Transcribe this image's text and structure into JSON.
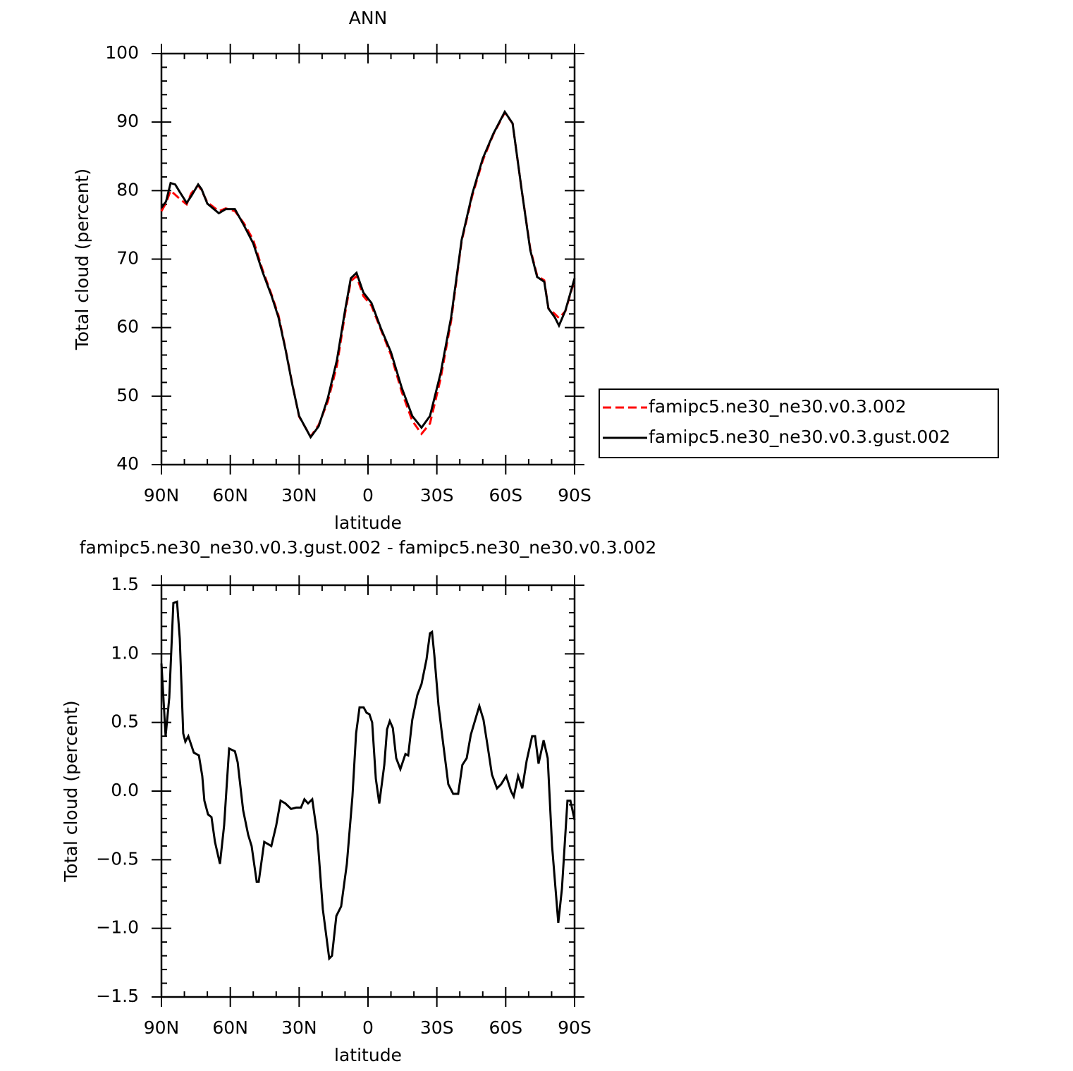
{
  "chart_data": [
    {
      "type": "line",
      "title": "ANN",
      "xlabel": "latitude",
      "ylabel": "Total cloud (percent)",
      "x": [
        90,
        88,
        86,
        84,
        82,
        79,
        77,
        74,
        72.5,
        70,
        65,
        62,
        58,
        54,
        50,
        46,
        42,
        39,
        36,
        33,
        30,
        25,
        21.5,
        17.5,
        13.5,
        10,
        7.5,
        5,
        2,
        -1.5,
        -5.5,
        -10,
        -14.7,
        -19.3,
        -23.3,
        -27,
        -31.6,
        -36.2,
        -40.8,
        -45.4,
        -50,
        -54.6,
        -59.6,
        -63,
        -67,
        -70.7,
        -73.7,
        -76.8,
        -78.6,
        -81.4,
        -83.2,
        -86,
        -90
      ],
      "series": [
        {
          "name": "famipc5.ne30_ne30.v0.3.002",
          "color": "#ff0000",
          "dash": true,
          "values": [
            77.0,
            78.2,
            80.0,
            79.4,
            78.8,
            78.0,
            79.6,
            80.8,
            80.0,
            78.3,
            77.0,
            77.4,
            77.0,
            75.2,
            72.8,
            68.5,
            64.8,
            61.8,
            57.0,
            51.8,
            47.0,
            44.1,
            45.8,
            49.2,
            54.5,
            62.0,
            66.8,
            67.5,
            64.6,
            63.2,
            59.8,
            56.0,
            50.6,
            46.4,
            44.5,
            46.0,
            52.5,
            61.0,
            72.6,
            79.2,
            84.4,
            88.2,
            91.4,
            89.8,
            80.0,
            71.5,
            67.6,
            66.9,
            62.8,
            62.0,
            61.4,
            62.4,
            67.0
          ]
        },
        {
          "name": "famipc5.ne30_ne30.v0.3.gust.002",
          "color": "#000000",
          "dash": false,
          "values": [
            77.5,
            78.4,
            81.1,
            80.9,
            79.8,
            78.2,
            79.2,
            80.9,
            80.2,
            78.1,
            76.7,
            77.3,
            77.3,
            74.9,
            72.3,
            68.2,
            64.6,
            61.5,
            56.9,
            51.7,
            47.1,
            44.0,
            45.6,
            49.7,
            55.3,
            62.5,
            67.2,
            68.0,
            65.1,
            63.6,
            60.0,
            56.4,
            51.2,
            47.1,
            45.4,
            47.1,
            53.3,
            61.5,
            72.8,
            79.5,
            84.7,
            88.3,
            91.5,
            89.8,
            80.0,
            71.3,
            67.4,
            66.7,
            62.8,
            61.5,
            60.3,
            62.5,
            67.2
          ]
        }
      ],
      "xlim": [
        90,
        -90
      ],
      "xticks": [
        {
          "value": 90,
          "label": "90N"
        },
        {
          "value": 60,
          "label": "60N"
        },
        {
          "value": 30,
          "label": "30N"
        },
        0,
        {
          "value": -30,
          "label": "30S"
        },
        {
          "value": -60,
          "label": "60S"
        },
        {
          "value": -90,
          "label": "90S"
        }
      ],
      "xminorticks": [
        80,
        70,
        50,
        40,
        20,
        10,
        -10,
        -20,
        -40,
        -50,
        -70,
        -80
      ],
      "ylim": [
        40,
        100
      ],
      "yticks": [
        40,
        50,
        60,
        70,
        80,
        90,
        100
      ],
      "yminorticks": [
        42,
        44,
        46,
        48,
        52,
        54,
        56,
        58,
        62,
        64,
        66,
        68,
        72,
        74,
        76,
        78,
        82,
        84,
        86,
        88,
        92,
        94,
        96,
        98
      ],
      "legend": "right"
    },
    {
      "type": "line",
      "title": "famipc5.ne30_ne30.v0.3.gust.002 - famipc5.ne30_ne30.v0.3.002",
      "xlabel": "latitude",
      "ylabel": "Total cloud (percent)",
      "x": [
        90,
        88.2,
        86.6,
        84.8,
        83.2,
        82,
        80.5,
        79.6,
        78.3,
        75.9,
        73.7,
        72.2,
        71.3,
        69.7,
        68.2,
        66.7,
        64.5,
        62.7,
        60.5,
        58,
        56.8,
        54.4,
        52.2,
        50.7,
        48.5,
        47.6,
        45.2,
        42.1,
        40,
        38.1,
        36,
        33.5,
        31.3,
        29.2,
        27.7,
        26.1,
        24.3,
        22.1,
        19.7,
        16.9,
        15.7,
        13.8,
        11.7,
        9.2,
        6.8,
        5.2,
        3.7,
        1.9,
        0.6,
        -0.6,
        -1.8,
        -3.4,
        -4.9,
        -7.1,
        -8.3,
        -9.5,
        -10.8,
        -12.3,
        -14.1,
        -16.3,
        -17.5,
        -19.3,
        -21.5,
        -23.3,
        -25.5,
        -27,
        -27.9,
        -28.9,
        -30.7,
        -32.2,
        -35,
        -37.1,
        -39.3,
        -41.1,
        -43,
        -44.8,
        -48.5,
        -50.3,
        -52.2,
        -54,
        -56.2,
        -58,
        -60.2,
        -62.3,
        -63.5,
        -65.4,
        -67.2,
        -69.1,
        -71.5,
        -72.8,
        -74.3,
        -76.5,
        -78.3,
        -80.2,
        -82.9,
        -84.5,
        -86.9,
        -88.2,
        -90
      ],
      "values": [
        0.93,
        0.4,
        0.68,
        1.37,
        1.38,
        1.11,
        0.42,
        0.36,
        0.4,
        0.28,
        0.26,
        0.11,
        -0.07,
        -0.17,
        -0.19,
        -0.37,
        -0.53,
        -0.25,
        0.31,
        0.29,
        0.21,
        -0.14,
        -0.32,
        -0.4,
        -0.66,
        -0.66,
        -0.37,
        -0.4,
        -0.25,
        -0.07,
        -0.09,
        -0.13,
        -0.12,
        -0.12,
        -0.06,
        -0.09,
        -0.06,
        -0.32,
        -0.86,
        -1.22,
        -1.2,
        -0.91,
        -0.84,
        -0.53,
        -0.04,
        0.42,
        0.61,
        0.61,
        0.57,
        0.56,
        0.5,
        0.09,
        -0.09,
        0.19,
        0.45,
        0.51,
        0.46,
        0.24,
        0.16,
        0.27,
        0.26,
        0.52,
        0.7,
        0.78,
        0.96,
        1.15,
        1.16,
        0.99,
        0.63,
        0.42,
        0.05,
        -0.02,
        -0.02,
        0.19,
        0.24,
        0.41,
        0.62,
        0.52,
        0.32,
        0.12,
        0.02,
        0.05,
        0.11,
        0.0,
        -0.04,
        0.11,
        0.02,
        0.22,
        0.4,
        0.4,
        0.2,
        0.37,
        0.24,
        -0.4,
        -0.96,
        -0.71,
        -0.07,
        -0.07,
        -0.21
      ],
      "color": "#000000",
      "xlim": [
        90,
        -90
      ],
      "xticks": [
        {
          "value": 90,
          "label": "90N"
        },
        {
          "value": 60,
          "label": "60N"
        },
        {
          "value": 30,
          "label": "30N"
        },
        0,
        {
          "value": -30,
          "label": "30S"
        },
        {
          "value": -60,
          "label": "60S"
        },
        {
          "value": -90,
          "label": "90S"
        }
      ],
      "xminorticks": [
        80,
        70,
        50,
        40,
        20,
        10,
        -10,
        -20,
        -40,
        -50,
        -70,
        -80
      ],
      "ylim": [
        -1.5,
        1.5
      ],
      "yticks": [
        {
          "value": -1.5,
          "label": "−1.5"
        },
        {
          "value": -1,
          "label": "−1.0"
        },
        {
          "value": -0.5,
          "label": "−0.5"
        },
        {
          "value": 0,
          "label": "0.0"
        },
        0.5,
        {
          "value": 1,
          "label": "1.0"
        },
        1.5
      ],
      "yminorticks": [
        -1.4,
        -1.3,
        -1.2,
        -1.1,
        -0.9,
        -0.8,
        -0.7,
        -0.6,
        -0.4,
        -0.3,
        -0.2,
        -0.1,
        0.1,
        0.2,
        0.3,
        0.4,
        0.6,
        0.7,
        0.8,
        0.9,
        1.1,
        1.2,
        1.3,
        1.4
      ]
    }
  ]
}
